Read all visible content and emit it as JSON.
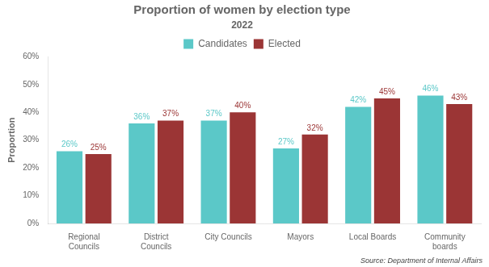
{
  "chart_data": {
    "type": "bar",
    "title": "Proportion of women by election type",
    "subtitle": "2022",
    "categories": [
      "Regional\nCouncils",
      "District\nCouncils",
      "City Councils",
      "Mayors",
      "Local Boards",
      "Community\nboards"
    ],
    "series": [
      {
        "name": "Candidates",
        "color": "#5BC8C8",
        "values": [
          26,
          36,
          37,
          27,
          42,
          46
        ],
        "value_labels": [
          "26%",
          "36%",
          "37%",
          "27%",
          "42%",
          "46%"
        ]
      },
      {
        "name": "Elected",
        "color": "#9B3535",
        "values": [
          25,
          37,
          40,
          32,
          45,
          43
        ],
        "value_labels": [
          "25%",
          "37%",
          "40%",
          "32%",
          "45%",
          "43%"
        ]
      }
    ],
    "ylabel": "Proportion",
    "ylim": [
      0,
      60
    ],
    "yticks": [
      {
        "value": 0,
        "label": "0%"
      },
      {
        "value": 10,
        "label": "10%"
      },
      {
        "value": 20,
        "label": "20%"
      },
      {
        "value": 30,
        "label": "30%"
      },
      {
        "value": 40,
        "label": "40%"
      },
      {
        "value": 50,
        "label": "50%"
      },
      {
        "value": 60,
        "label": "60%"
      }
    ],
    "data_labels": true,
    "grid": false,
    "legend": "top",
    "annotations": [
      "Source: Department of Internal Affairs"
    ]
  }
}
